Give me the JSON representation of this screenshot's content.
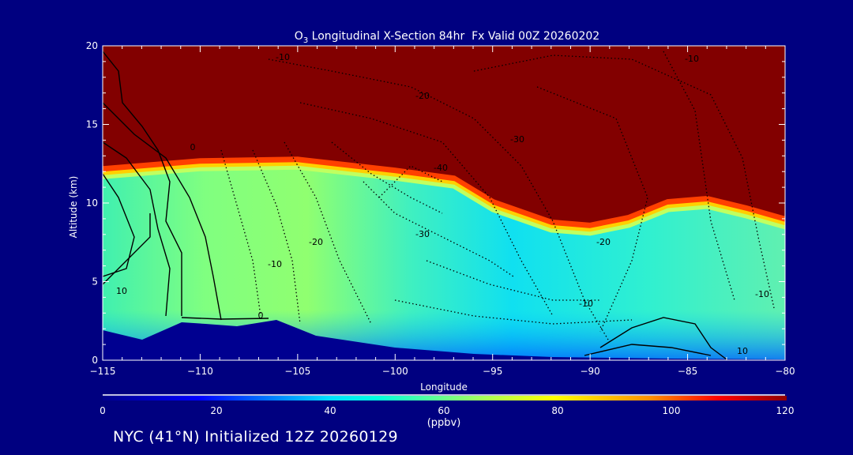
{
  "chart_data": {
    "type": "heatmap",
    "title_prefix": "O",
    "title_subscript": "3",
    "title_rest": " Longitudinal X-Section 84hr  Fx Valid 00Z 20260202",
    "xlabel": "Longitude",
    "ylabel": "Altitude (km)",
    "xlim": [
      -115,
      -80
    ],
    "ylim": [
      0,
      20
    ],
    "xticks": [
      "-115",
      "-110",
      "-105",
      "-100",
      "-95",
      "-90",
      "-85",
      "-80"
    ],
    "xtick_values": [
      -115,
      -110,
      -105,
      -100,
      -95,
      -90,
      -85,
      -80
    ],
    "yticks": [
      "0",
      "5",
      "10",
      "15",
      "20"
    ],
    "ytick_values": [
      0,
      5,
      10,
      15,
      20
    ],
    "colorbar": {
      "ticks": [
        "0",
        "20",
        "40",
        "60",
        "80",
        "100",
        "120"
      ],
      "range": [
        0,
        120
      ],
      "units": "(ppbv)",
      "colors": [
        "#00008c",
        "#0000ff",
        "#00ffff",
        "#80ff80",
        "#ffff00",
        "#ff8000",
        "#ff0000",
        "#800000"
      ]
    },
    "field_values_ppbv": {
      "stratosphere_above_tropopause": 120,
      "troposphere_typical": 50,
      "near_surface_east": 25
    },
    "tropopause_km": [
      {
        "lon": -115,
        "alt": 12.1
      },
      {
        "lon": -110,
        "alt": 12.6
      },
      {
        "lon": -105,
        "alt": 12.7
      },
      {
        "lon": -100,
        "alt": 12.0
      },
      {
        "lon": -97,
        "alt": 11.5
      },
      {
        "lon": -95,
        "alt": 10.0
      },
      {
        "lon": -92,
        "alt": 8.7
      },
      {
        "lon": -90,
        "alt": 8.5
      },
      {
        "lon": -88,
        "alt": 9.0
      },
      {
        "lon": -86,
        "alt": 10.0
      },
      {
        "lon": -84,
        "alt": 10.2
      },
      {
        "lon": -82,
        "alt": 9.6
      },
      {
        "lon": -80,
        "alt": 8.9
      }
    ],
    "contour_labels": [
      "-10",
      "-20",
      "-30",
      "-40",
      "0",
      "10",
      "-10",
      "-20",
      "-30",
      "-10",
      "-20",
      "-10",
      "0",
      "-10",
      "10"
    ]
  },
  "footer": "NYC (41°N) Initialized 12Z 20260129"
}
